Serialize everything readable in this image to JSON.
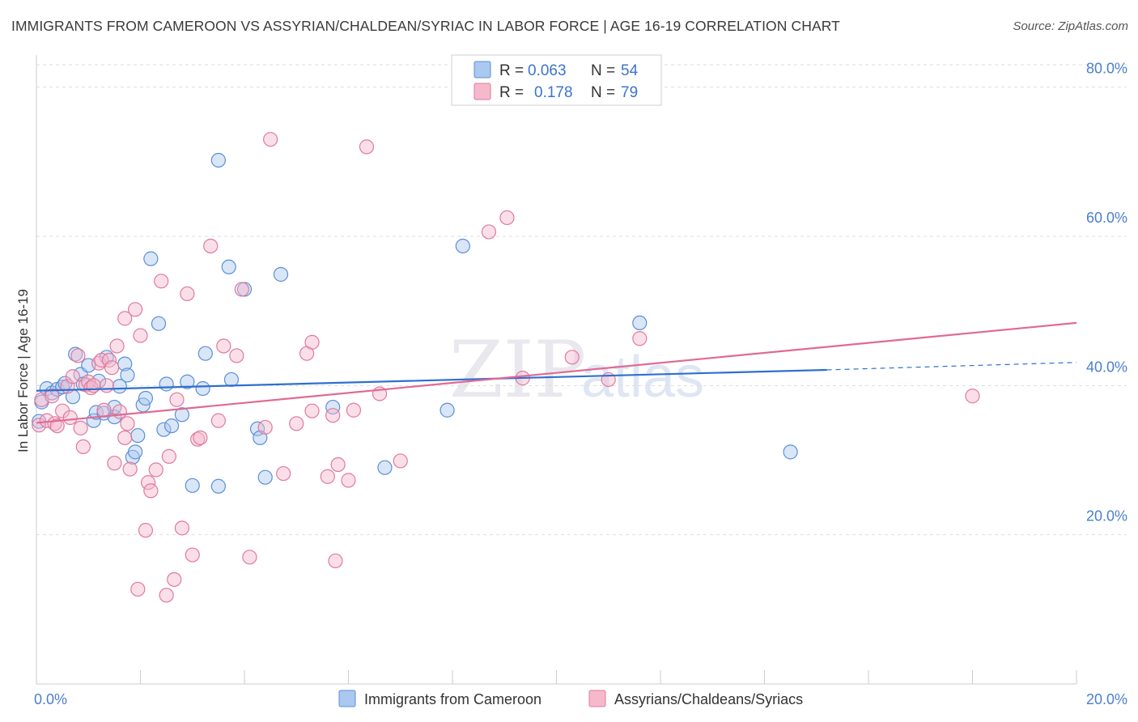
{
  "title": "IMMIGRANTS FROM CAMEROON VS ASSYRIAN/CHALDEAN/SYRIAC IN LABOR FORCE | AGE 16-19 CORRELATION CHART",
  "source": "Source: ZipAtlas.com",
  "watermark": {
    "zip": "ZIP",
    "atlas": "atlas"
  },
  "legend": {
    "rows": [
      {
        "r_label": "R = ",
        "r_value": "0.063",
        "n_label": "N = ",
        "n_value": "54"
      },
      {
        "r_label": "R = ",
        "r_value": "0.178",
        "n_label": "N = ",
        "n_value": "79"
      }
    ]
  },
  "colors": {
    "blue_fill": "#aac8f0",
    "blue_stroke": "#5b8fd6",
    "blue_line": "#2f6fcf",
    "pink_fill": "#f6b9cc",
    "pink_stroke": "#e07a9c",
    "pink_line": "#e06a92",
    "grid": "#dddddd",
    "tick_text": "#4a7fcf"
  },
  "chart_data": {
    "type": "scatter",
    "title": "IMMIGRANTS FROM CAMEROON VS ASSYRIAN/CHALDEAN/SYRIAC IN LABOR FORCE | AGE 16-19 CORRELATION CHART",
    "xlabel": "",
    "ylabel": "In Labor Force | Age 16-19",
    "xlim": [
      0,
      20
    ],
    "ylim": [
      0,
      83
    ],
    "x_tick_labels": [
      {
        "value": 0,
        "label": "0.0%"
      },
      {
        "value": 20,
        "label": "20.0%"
      }
    ],
    "y_tick_labels": [
      {
        "value": 20,
        "label": "20.0%"
      },
      {
        "value": 40,
        "label": "40.0%"
      },
      {
        "value": 60,
        "label": "60.0%"
      },
      {
        "value": 80,
        "label": "80.0%"
      }
    ],
    "series": [
      {
        "name": "Immigrants from Cameroon",
        "color": "blue",
        "trend": {
          "x0": 0,
          "y0": 39.3,
          "x1": 15.2,
          "y1": 42.1,
          "dash_to_x": 20,
          "dash_to_y": 43.1
        },
        "points": [
          [
            0.05,
            35.2
          ],
          [
            0.1,
            37.8
          ],
          [
            0.2,
            39.6
          ],
          [
            0.3,
            39.0
          ],
          [
            0.4,
            39.5
          ],
          [
            0.5,
            39.8
          ],
          [
            0.55,
            40.3
          ],
          [
            0.7,
            38.5
          ],
          [
            0.75,
            44.2
          ],
          [
            0.85,
            41.5
          ],
          [
            0.9,
            40.2
          ],
          [
            1.0,
            42.7
          ],
          [
            1.1,
            35.3
          ],
          [
            1.15,
            36.4
          ],
          [
            1.2,
            40.6
          ],
          [
            1.3,
            36.3
          ],
          [
            1.35,
            43.8
          ],
          [
            1.5,
            35.8
          ],
          [
            1.5,
            37.1
          ],
          [
            1.6,
            39.9
          ],
          [
            1.7,
            42.9
          ],
          [
            1.75,
            41.4
          ],
          [
            1.85,
            30.4
          ],
          [
            1.9,
            31.1
          ],
          [
            1.95,
            33.3
          ],
          [
            2.05,
            37.4
          ],
          [
            2.1,
            38.3
          ],
          [
            2.2,
            57.0
          ],
          [
            2.35,
            48.3
          ],
          [
            2.45,
            34.1
          ],
          [
            2.5,
            40.2
          ],
          [
            2.6,
            34.6
          ],
          [
            2.8,
            36.1
          ],
          [
            2.9,
            40.5
          ],
          [
            3.0,
            26.6
          ],
          [
            3.2,
            39.6
          ],
          [
            3.25,
            44.3
          ],
          [
            3.5,
            26.5
          ],
          [
            3.5,
            70.2
          ],
          [
            3.7,
            55.9
          ],
          [
            3.75,
            40.8
          ],
          [
            4.0,
            52.9
          ],
          [
            4.25,
            34.2
          ],
          [
            4.3,
            33.0
          ],
          [
            4.4,
            27.7
          ],
          [
            4.7,
            54.9
          ],
          [
            5.7,
            37.1
          ],
          [
            6.7,
            29.0
          ],
          [
            7.9,
            36.7
          ],
          [
            8.2,
            58.7
          ],
          [
            11.6,
            48.4
          ],
          [
            14.5,
            31.1
          ]
        ]
      },
      {
        "name": "Assyrians/Chaldeans/Syriacs",
        "color": "pink",
        "trend": {
          "x0": 0,
          "y0": 35.0,
          "x1": 20,
          "y1": 48.4
        },
        "points": [
          [
            0.05,
            34.7
          ],
          [
            0.1,
            38.1
          ],
          [
            0.2,
            35.3
          ],
          [
            0.3,
            38.6
          ],
          [
            0.35,
            34.9
          ],
          [
            0.4,
            34.6
          ],
          [
            0.5,
            36.6
          ],
          [
            0.6,
            39.9
          ],
          [
            0.65,
            35.7
          ],
          [
            0.7,
            41.2
          ],
          [
            0.8,
            44.0
          ],
          [
            0.85,
            34.3
          ],
          [
            0.9,
            31.8
          ],
          [
            0.95,
            40.1
          ],
          [
            1.0,
            40.5
          ],
          [
            1.05,
            39.7
          ],
          [
            1.1,
            40.0
          ],
          [
            1.2,
            43.0
          ],
          [
            1.25,
            43.4
          ],
          [
            1.3,
            36.7
          ],
          [
            1.35,
            40.0
          ],
          [
            1.4,
            43.4
          ],
          [
            1.45,
            42.4
          ],
          [
            1.5,
            29.6
          ],
          [
            1.55,
            45.3
          ],
          [
            1.6,
            36.5
          ],
          [
            1.7,
            49.0
          ],
          [
            1.7,
            33.0
          ],
          [
            1.75,
            34.9
          ],
          [
            1.8,
            28.8
          ],
          [
            1.9,
            50.2
          ],
          [
            1.95,
            12.7
          ],
          [
            2.0,
            46.7
          ],
          [
            2.1,
            20.6
          ],
          [
            2.15,
            27.0
          ],
          [
            2.2,
            25.9
          ],
          [
            2.3,
            28.7
          ],
          [
            2.4,
            54.0
          ],
          [
            2.5,
            11.9
          ],
          [
            2.55,
            30.5
          ],
          [
            2.65,
            14.0
          ],
          [
            2.7,
            38.1
          ],
          [
            2.8,
            20.9
          ],
          [
            2.9,
            52.3
          ],
          [
            3.0,
            17.3
          ],
          [
            3.1,
            32.8
          ],
          [
            3.15,
            33.0
          ],
          [
            3.35,
            58.7
          ],
          [
            3.5,
            35.3
          ],
          [
            3.6,
            45.3
          ],
          [
            3.85,
            44.0
          ],
          [
            3.95,
            52.9
          ],
          [
            4.1,
            17.0
          ],
          [
            4.4,
            34.4
          ],
          [
            4.5,
            73.0
          ],
          [
            4.75,
            28.2
          ],
          [
            5.0,
            34.9
          ],
          [
            5.2,
            44.3
          ],
          [
            5.3,
            45.8
          ],
          [
            5.3,
            36.6
          ],
          [
            5.6,
            27.8
          ],
          [
            5.7,
            36.0
          ],
          [
            5.75,
            16.5
          ],
          [
            5.8,
            29.4
          ],
          [
            6.0,
            27.3
          ],
          [
            6.1,
            36.7
          ],
          [
            6.35,
            72.0
          ],
          [
            6.6,
            38.9
          ],
          [
            7.0,
            29.9
          ],
          [
            8.7,
            60.6
          ],
          [
            9.05,
            62.5
          ],
          [
            9.35,
            41.0
          ],
          [
            10.3,
            43.8
          ],
          [
            11.0,
            40.8
          ],
          [
            11.6,
            46.3
          ],
          [
            18.0,
            38.6
          ]
        ]
      }
    ]
  },
  "bottom_legend": {
    "items": [
      {
        "label": "Immigrants from Cameroon"
      },
      {
        "label": "Assyrians/Chaldeans/Syriacs"
      }
    ]
  }
}
